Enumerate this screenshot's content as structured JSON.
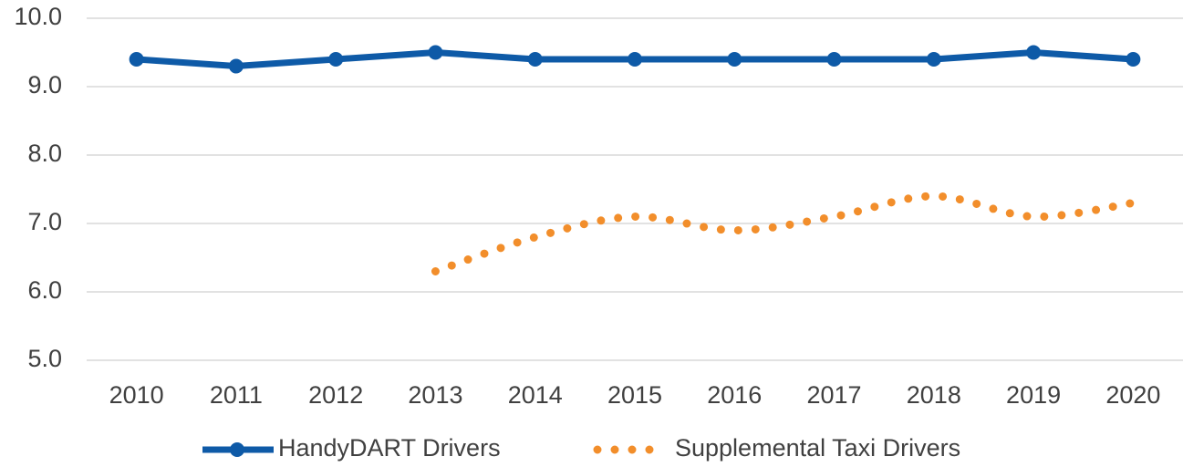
{
  "chart_data": {
    "type": "line",
    "categories": [
      "2010",
      "2011",
      "2012",
      "2013",
      "2014",
      "2015",
      "2016",
      "2017",
      "2018",
      "2019",
      "2020"
    ],
    "series": [
      {
        "name": "HandyDART Drivers",
        "color": "#0e5aa7",
        "style": "solid",
        "markers": true,
        "values": [
          9.4,
          9.3,
          9.4,
          9.5,
          9.4,
          9.4,
          9.4,
          9.4,
          9.4,
          9.5,
          9.4
        ]
      },
      {
        "name": "Supplemental Taxi Drivers",
        "color": "#f28e2b",
        "style": "dotted",
        "smooth": true,
        "values": [
          null,
          null,
          null,
          6.3,
          6.8,
          7.1,
          6.9,
          7.1,
          7.4,
          7.1,
          7.3
        ]
      }
    ],
    "ylim": [
      5,
      10
    ],
    "yticks": [
      {
        "value": 5,
        "label": "5.0"
      },
      {
        "value": 6,
        "label": "6.0"
      },
      {
        "value": 7,
        "label": "7.0"
      },
      {
        "value": 8,
        "label": "8.0"
      },
      {
        "value": 9,
        "label": "9.0"
      },
      {
        "value": 10,
        "label": "10.0"
      }
    ],
    "grid": true,
    "legend": "bottom"
  }
}
